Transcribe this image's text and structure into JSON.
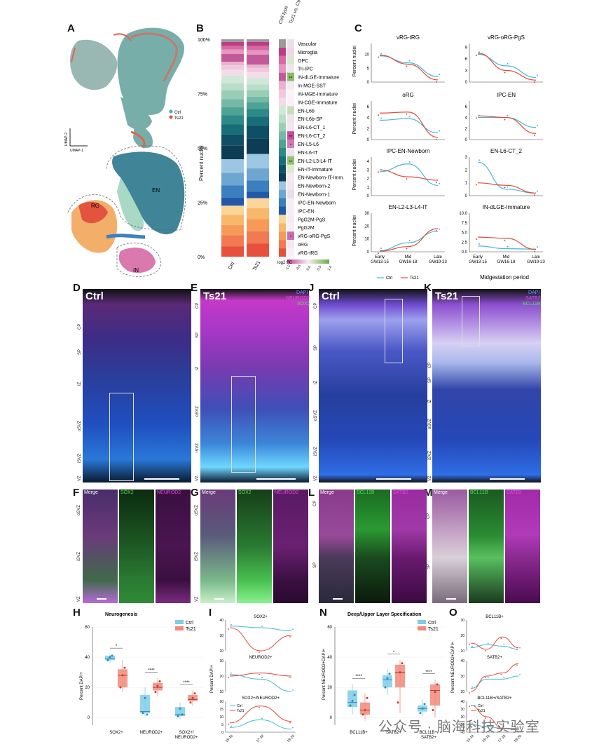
{
  "panel_labels": {
    "A": "A",
    "B": "B",
    "C": "C",
    "D": "D",
    "E": "E",
    "F": "F",
    "G": "G",
    "H": "H",
    "I": "I",
    "J": "J",
    "K": "K",
    "L": "L",
    "M": "M",
    "N": "N",
    "O": "O"
  },
  "panelA": {
    "legend": [
      {
        "name": "Ctrl",
        "color": "#3bb5ad"
      },
      {
        "name": "Ts21",
        "color": "#e2523a"
      }
    ],
    "axis_y": "UMAP-2",
    "axis_x": "UMAP-1",
    "regions": [
      "EN",
      "RG",
      "IN"
    ]
  },
  "panelB": {
    "ylabel": "Percent nuclei",
    "yticks": [
      "100%",
      "75%",
      "50%",
      "25%",
      "0%"
    ],
    "bars": [
      "Ctrl",
      "Ts21"
    ],
    "header_celltype": "Cell type",
    "header_ts21": "Ts21 vs. Ctrl",
    "fc_label": "log2 FC",
    "fc_ticks": [
      "-1.0",
      "-0.5",
      "0.0",
      "0.5",
      "1.0"
    ],
    "celltypes": [
      "Vascular",
      "Microglia",
      "OPC",
      "Tri-IPC",
      "IN-dLGE-Immature",
      "In-MGE-SST",
      "IN-MGE-Immature",
      "IN-CGE-Immature",
      "EN-L6b",
      "EN-L6b-SP",
      "EN-L6-CT_1",
      "EN-L6-CT_2",
      "EN-L5-L6",
      "EN-L6-IT",
      "EN-L2-L3-L4-IT",
      "EN-IT-Immature",
      "EN-Newborn-IT-Imm.",
      "EN-Newborn-2",
      "EN-Newborn-1",
      "IPC-EN-Newborn",
      "IPC-EN",
      "PgG2M-PgS",
      "PgG2M",
      "vRG-oRG-PgS",
      "oRG",
      "vRG-tRG"
    ],
    "sig": {
      "4": "**",
      "11": "**",
      "12": "*",
      "14": "**",
      "23": "*"
    },
    "colors": [
      "#9a9a9a",
      "#c03b85",
      "#d86aa3",
      "#e696bf",
      "#c25a9a",
      "#e9b3cf",
      "#f1c9dd",
      "#f5dbe8",
      "#cfe8da",
      "#b9ddc9",
      "#98cdb7",
      "#74b9a3",
      "#4ea394",
      "#2e8a86",
      "#176e78",
      "#0f4f65",
      "#0c3d55",
      "#9cc6e2",
      "#6da7d1",
      "#3c7fbe",
      "#2258a8",
      "#fbd59a",
      "#f8b86b",
      "#f79a58",
      "#f37952",
      "#e6503d"
    ],
    "fc_colors": [
      "#e9e0ee",
      "#f3d6e6",
      "#d9e8cf",
      "#f0e6ef",
      "#86be5f",
      "#f4eaf2",
      "#faf3f7",
      "#f9f1f6",
      "#c8deb8",
      "#efe4ee",
      "#f3e4ee",
      "#c44ea0",
      "#d17bb6",
      "#f0e3ed",
      "#8fc36d",
      "#dfeacd",
      "#f6eaf2",
      "#f3e6ef",
      "#eadcec",
      "#f6eef4",
      "#f7eef5",
      "#f5ecf3",
      "#f6eef4",
      "#c96fb0",
      "#f4e8f1",
      "#f8f0f6"
    ]
  },
  "panelC": {
    "ylabel": "Percent nuclei",
    "xlabel": "Midgestation period",
    "xticks": [
      "Early\nGW13-15",
      "Mid\nGW16-18",
      "Late\nGW19-23"
    ],
    "legend": [
      {
        "name": "Ctrl",
        "color": "#46b7d6"
      },
      {
        "name": "Ts21",
        "color": "#e14a3a"
      }
    ],
    "plots": [
      {
        "title": "vRG-tRG",
        "yticks": [
          "0",
          "5",
          "10"
        ],
        "ymax": 14,
        "ctrl": [
          9.5,
          7.0,
          2.0
        ],
        "ts21": [
          9.8,
          6.5,
          0.8
        ]
      },
      {
        "title": "vRG-oRG-PgS",
        "yticks": [
          "0",
          "3",
          "6",
          "9"
        ],
        "ymax": 10,
        "ctrl": [
          7.2,
          4.2,
          1.2
        ],
        "ts21": [
          7.5,
          3.0,
          0.5
        ]
      },
      {
        "title": "oRG",
        "yticks": [
          "0",
          "2",
          "4",
          "6"
        ],
        "ymax": 7,
        "ctrl": [
          3.5,
          3.8,
          1.2
        ],
        "ts21": [
          4.8,
          5.0,
          0.4
        ]
      },
      {
        "title": "IPC-EN",
        "yticks": [
          "0",
          "2",
          "4",
          "6"
        ],
        "ymax": 7,
        "ctrl": [
          4.0,
          4.0,
          2.2
        ],
        "ts21": [
          4.3,
          4.0,
          1.1
        ]
      },
      {
        "title": "IPC-EN-Newborn",
        "yticks": [
          "0",
          "1",
          "2",
          "3",
          "4"
        ],
        "ymax": 4.5,
        "ctrl": [
          2.8,
          3.7,
          1.2
        ],
        "ts21": [
          3.0,
          2.2,
          1.8
        ]
      },
      {
        "title": "EN-L6-CT_2",
        "yticks": [
          "0",
          "1",
          "2",
          "3"
        ],
        "ymax": 3,
        "ctrl": [
          2.6,
          0.5,
          0.2
        ],
        "ts21": [
          1.0,
          0.8,
          0.2
        ]
      },
      {
        "title": "EN-L2-L3-L4-IT",
        "yticks": [
          "0",
          "10",
          "20",
          "30"
        ],
        "ymax": 30,
        "ctrl": [
          1.0,
          7.0,
          16.0
        ],
        "ts21": [
          0.5,
          4.0,
          18.0
        ]
      },
      {
        "title": "IN-dLGE-Immature",
        "yticks": [
          "0.0",
          "2.5",
          "5.0",
          "7.5",
          "10.0"
        ],
        "ymax": 10,
        "ctrl": [
          1.5,
          0.8,
          0.7
        ],
        "ts21": [
          3.8,
          3.5,
          0.6
        ]
      }
    ]
  },
  "panelD": {
    "title": "Ctrl",
    "zones": [
      "CP",
      "SP",
      "IZ",
      "oSVZ",
      "iSVZ",
      "VZ"
    ]
  },
  "panelE": {
    "title": "Ts21",
    "legend": [
      "DAPI",
      "NEUROD2",
      "SOX2"
    ],
    "legend_colors": [
      "#5aa0ff",
      "#e24ce0",
      "#58e058"
    ],
    "zones": [
      "CP",
      "SP",
      "IZ",
      "oSVZ",
      "iSVZ",
      "VZ"
    ]
  },
  "panelJ": {
    "title": "Ctrl",
    "zones": [
      "CP",
      "SP",
      "IZ",
      "oSVZ",
      "iSVZ",
      "VZ"
    ]
  },
  "panelK": {
    "title": "Ts21",
    "legend": [
      "DAPI",
      "SATB2",
      "BCL11B"
    ],
    "legend_colors": [
      "#5aa0ff",
      "#e24ce0",
      "#58e058"
    ],
    "zones": [
      "CP",
      "SP",
      "IZ",
      "oSVZ",
      "iSVZ",
      "VZ"
    ]
  },
  "panelF": {
    "channels": [
      "Merge",
      "SOX2",
      "NEUROD2"
    ],
    "zones": [
      "oSVZ",
      "iSVZ",
      "VZ"
    ]
  },
  "panelG": {
    "channels": [
      "Merge",
      "SOX2",
      "NEUROD2"
    ],
    "zones": [
      "oSVZ",
      "iSVZ",
      "VZ"
    ]
  },
  "panelL": {
    "channels": [
      "Merge",
      "BCL11B",
      "SATB2"
    ],
    "zones": [
      "CP",
      "SP"
    ]
  },
  "panelM": {
    "channels": [
      "Merge",
      "BCL11B",
      "SATB2"
    ],
    "zones": [
      "CP",
      "SP"
    ]
  },
  "panelH": {
    "title": "Neurogenesis",
    "ylabel": "Percent DAPI+",
    "yticks": [
      "60",
      "40",
      "20",
      "0"
    ],
    "groups": [
      "SOX2+",
      "NEUROD2+",
      "SOX2+/\nNEUROD2+"
    ],
    "sig": [
      "*",
      "****",
      "****"
    ],
    "legend": [
      {
        "name": "Ctrl",
        "color": "#7fcde8"
      },
      {
        "name": "Ts21",
        "color": "#f08a7a"
      }
    ]
  },
  "panelI": {
    "ylabel": "Percent DAPI+",
    "titles": [
      "SOX2+",
      "NEUROD2+",
      "SOX2+/NEUROD2+"
    ],
    "xticks": [
      "15-16",
      "17-18",
      "19-20"
    ],
    "legend": [
      {
        "name": "Ctrl",
        "color": "#46b7d6"
      },
      {
        "name": "Ts21",
        "color": "#e14a3a"
      }
    ],
    "plots": [
      {
        "yticks": [
          "40",
          "30",
          "20"
        ],
        "ctrl": [
          36,
          35,
          33
        ],
        "ts21": [
          35,
          19,
          30
        ]
      },
      {
        "yticks": [
          "30",
          "20",
          "10"
        ],
        "ctrl": [
          21,
          18,
          6
        ],
        "ts21": [
          20,
          22,
          20
        ]
      },
      {
        "yticks": [
          "20",
          "15",
          "10",
          "5",
          "0"
        ],
        "ctrl": [
          3,
          8,
          2
        ],
        "ts21": [
          6,
          17,
          7
        ]
      }
    ]
  },
  "panelN": {
    "title": "Deep/Upper Layer Specification",
    "ylabel": "Percent NEUROD2+DAPI+",
    "yticks": [
      "60",
      "40",
      "20",
      "0"
    ],
    "groups": [
      "BCL11B+",
      "SATB2+",
      "BCL11B+/\nSATB2+"
    ],
    "sig": [
      "****",
      "*",
      "****"
    ],
    "legend": [
      {
        "name": "Ctrl",
        "color": "#7fcde8"
      },
      {
        "name": "Ts21",
        "color": "#f08a7a"
      }
    ]
  },
  "panelO": {
    "ylabel": "Percent NEUROD2+DAPI+",
    "titles": [
      "BCL11B+",
      "SATB2+",
      "BCL11B+/SATB2+"
    ],
    "xticks": [
      "13-14",
      "15-16",
      "17-18",
      "19-20"
    ],
    "legend": [
      {
        "name": "Ctrl",
        "color": "#46b7d6"
      },
      {
        "name": "Ts21",
        "color": "#e14a3a"
      }
    ],
    "plots": [
      {
        "yticks": [
          "30",
          "20",
          "10"
        ],
        "ctrl": [
          12,
          14,
          13,
          11
        ],
        "ts21": [
          15,
          11,
          19,
          12
        ]
      },
      {
        "yticks": [
          "40",
          "30",
          "20"
        ],
        "ctrl": [
          22,
          28,
          28,
          30
        ],
        "ts21": [
          20,
          30,
          32,
          38
        ]
      },
      {
        "yticks": [
          "40",
          "30",
          "20",
          "10",
          "0"
        ],
        "ctrl": [
          10,
          7,
          5,
          5
        ],
        "ts21": [
          35,
          20,
          5,
          3
        ]
      }
    ]
  },
  "watermark": "公众号 · 脑海科技实验室"
}
